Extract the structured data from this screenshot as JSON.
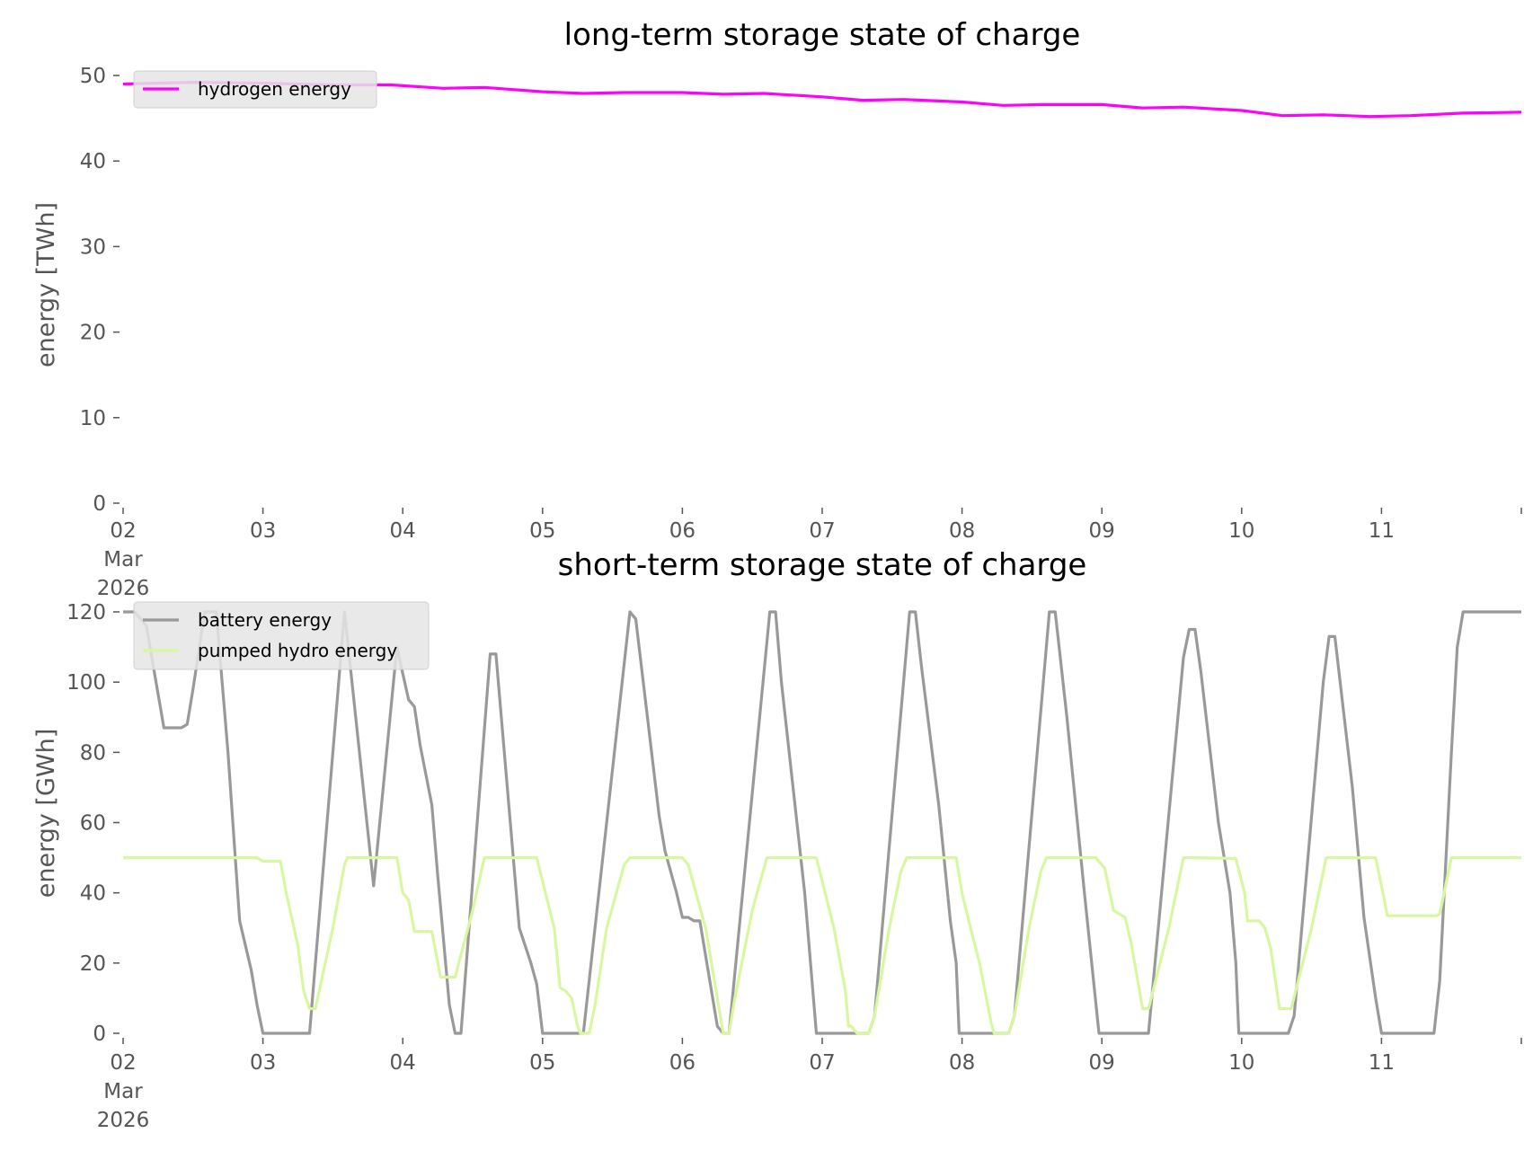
{
  "chart_data": [
    {
      "type": "line",
      "title": "long-term storage state of charge",
      "xlabel": "",
      "ylabel": "energy [TWh]",
      "xlim": [
        "2026-03-02T00:00",
        "2026-03-12T00:00"
      ],
      "ylim": [
        0,
        50
      ],
      "yticks": [
        "0",
        "10",
        "20",
        "30",
        "40",
        "50"
      ],
      "xticks": [
        "02\nMar\n2026",
        "03",
        "04",
        "05",
        "06",
        "07",
        "08",
        "09",
        "10",
        "11"
      ],
      "grid": false,
      "legend_placement": "upper-left",
      "series": [
        {
          "name": "hydrogen energy",
          "color": "#ff00ff",
          "points": [
            [
              "2026-03-02T00:00",
              49.0
            ],
            [
              "2026-03-02T12:00",
              49.2
            ],
            [
              "2026-03-03T00:00",
              49.1
            ],
            [
              "2026-03-03T12:00",
              48.9
            ],
            [
              "2026-03-03T22:00",
              48.9
            ],
            [
              "2026-03-04T07:00",
              48.5
            ],
            [
              "2026-03-04T14:00",
              48.6
            ],
            [
              "2026-03-05T00:00",
              48.1
            ],
            [
              "2026-03-05T07:00",
              47.9
            ],
            [
              "2026-03-05T14:00",
              48.0
            ],
            [
              "2026-03-06T00:00",
              48.0
            ],
            [
              "2026-03-06T07:00",
              47.8
            ],
            [
              "2026-03-06T14:00",
              47.9
            ],
            [
              "2026-03-07T00:00",
              47.5
            ],
            [
              "2026-03-07T07:00",
              47.1
            ],
            [
              "2026-03-07T14:00",
              47.2
            ],
            [
              "2026-03-08T00:00",
              46.9
            ],
            [
              "2026-03-08T07:00",
              46.5
            ],
            [
              "2026-03-08T14:00",
              46.6
            ],
            [
              "2026-03-09T00:00",
              46.6
            ],
            [
              "2026-03-09T07:00",
              46.2
            ],
            [
              "2026-03-09T14:00",
              46.3
            ],
            [
              "2026-03-10T00:00",
              45.9
            ],
            [
              "2026-03-10T07:00",
              45.3
            ],
            [
              "2026-03-10T14:00",
              45.4
            ],
            [
              "2026-03-10T22:00",
              45.2
            ],
            [
              "2026-03-11T05:00",
              45.3
            ],
            [
              "2026-03-11T14:00",
              45.6
            ],
            [
              "2026-03-12T00:00",
              45.7
            ]
          ]
        }
      ]
    },
    {
      "type": "line",
      "title": "short-term storage state of charge",
      "xlabel": "",
      "ylabel": "energy [GWh]",
      "xlim": [
        "2026-03-02T00:00",
        "2026-03-12T00:00"
      ],
      "ylim": [
        0,
        120
      ],
      "yticks": [
        "0",
        "20",
        "40",
        "60",
        "80",
        "100",
        "120"
      ],
      "xticks": [
        "02\nMar\n2026",
        "03",
        "04",
        "05",
        "06",
        "07",
        "08",
        "09",
        "10",
        "11"
      ],
      "grid": false,
      "legend_placement": "upper-left",
      "series": [
        {
          "name": "battery energy",
          "color": "#999999",
          "points": [
            [
              "2026-03-02T00:00",
              120
            ],
            [
              "2026-03-02T02:00",
              120
            ],
            [
              "2026-03-02T04:00",
              116
            ],
            [
              "2026-03-02T07:00",
              87
            ],
            [
              "2026-03-02T10:00",
              87
            ],
            [
              "2026-03-02T11:00",
              88
            ],
            [
              "2026-03-02T12:00",
              98
            ],
            [
              "2026-03-02T14:00",
              120
            ],
            [
              "2026-03-02T16:00",
              120
            ],
            [
              "2026-03-02T18:00",
              80
            ],
            [
              "2026-03-02T20:00",
              32
            ],
            [
              "2026-03-02T22:00",
              18
            ],
            [
              "2026-03-02T23:00",
              8
            ],
            [
              "2026-03-03T00:00",
              0
            ],
            [
              "2026-03-03T08:00",
              0
            ],
            [
              "2026-03-03T14:00",
              120
            ],
            [
              "2026-03-03T19:00",
              42
            ],
            [
              "2026-03-03T23:00",
              110
            ],
            [
              "2026-03-04T01:00",
              95
            ],
            [
              "2026-03-04T02:00",
              93
            ],
            [
              "2026-03-04T03:00",
              82
            ],
            [
              "2026-03-04T05:00",
              65
            ],
            [
              "2026-03-04T06:00",
              45
            ],
            [
              "2026-03-04T08:00",
              8
            ],
            [
              "2026-03-04T09:00",
              0
            ],
            [
              "2026-03-04T10:00",
              0
            ],
            [
              "2026-03-04T15:00",
              108
            ],
            [
              "2026-03-04T16:00",
              108
            ],
            [
              "2026-03-04T20:00",
              30
            ],
            [
              "2026-03-04T22:00",
              20
            ],
            [
              "2026-03-04T23:00",
              14
            ],
            [
              "2026-03-05T00:00",
              0
            ],
            [
              "2026-03-05T07:00",
              0
            ],
            [
              "2026-03-05T15:00",
              120
            ],
            [
              "2026-03-05T16:00",
              118
            ],
            [
              "2026-03-05T20:00",
              62
            ],
            [
              "2026-03-05T21:00",
              52
            ],
            [
              "2026-03-05T23:00",
              40
            ],
            [
              "2026-03-06T00:00",
              33
            ],
            [
              "2026-03-06T01:00",
              33
            ],
            [
              "2026-03-06T02:00",
              32
            ],
            [
              "2026-03-06T03:00",
              32
            ],
            [
              "2026-03-06T06:00",
              2
            ],
            [
              "2026-03-06T07:00",
              0
            ],
            [
              "2026-03-06T08:00",
              0
            ],
            [
              "2026-03-06T15:00",
              120
            ],
            [
              "2026-03-06T16:00",
              120
            ],
            [
              "2026-03-06T17:00",
              100
            ],
            [
              "2026-03-06T21:00",
              40
            ],
            [
              "2026-03-06T23:00",
              0
            ],
            [
              "2026-03-07T08:00",
              0
            ],
            [
              "2026-03-07T09:00",
              5
            ],
            [
              "2026-03-07T15:00",
              120
            ],
            [
              "2026-03-07T16:00",
              120
            ],
            [
              "2026-03-07T17:00",
              105
            ],
            [
              "2026-03-07T20:00",
              65
            ],
            [
              "2026-03-07T22:00",
              32
            ],
            [
              "2026-03-07T23:00",
              20
            ],
            [
              "2026-03-07T23:30",
              0
            ],
            [
              "2026-03-08T08:00",
              0
            ],
            [
              "2026-03-08T09:00",
              5
            ],
            [
              "2026-03-08T15:00",
              120
            ],
            [
              "2026-03-08T16:00",
              120
            ],
            [
              "2026-03-08T18:00",
              90
            ],
            [
              "2026-03-08T21:00",
              40
            ],
            [
              "2026-03-08T23:30",
              0
            ],
            [
              "2026-03-09T08:00",
              0
            ],
            [
              "2026-03-09T14:00",
              107
            ],
            [
              "2026-03-09T15:00",
              115
            ],
            [
              "2026-03-09T16:00",
              115
            ],
            [
              "2026-03-09T17:00",
              103
            ],
            [
              "2026-03-09T20:00",
              60
            ],
            [
              "2026-03-09T22:00",
              40
            ],
            [
              "2026-03-09T23:00",
              20
            ],
            [
              "2026-03-09T23:30",
              0
            ],
            [
              "2026-03-10T08:00",
              0
            ],
            [
              "2026-03-10T09:00",
              5
            ],
            [
              "2026-03-10T14:00",
              100
            ],
            [
              "2026-03-10T15:00",
              113
            ],
            [
              "2026-03-10T16:00",
              113
            ],
            [
              "2026-03-10T19:00",
              70
            ],
            [
              "2026-03-10T21:00",
              33
            ],
            [
              "2026-03-10T23:00",
              10
            ],
            [
              "2026-03-11T00:00",
              0
            ],
            [
              "2026-03-11T09:00",
              0
            ],
            [
              "2026-03-11T10:00",
              15
            ],
            [
              "2026-03-11T12:00",
              80
            ],
            [
              "2026-03-11T13:00",
              110
            ],
            [
              "2026-03-11T14:00",
              120
            ],
            [
              "2026-03-12T00:00",
              120
            ]
          ]
        },
        {
          "name": "pumped hydro energy",
          "color": "#d9f7a0",
          "points": [
            [
              "2026-03-02T00:00",
              50
            ],
            [
              "2026-03-02T23:00",
              50
            ],
            [
              "2026-03-03T00:00",
              49
            ],
            [
              "2026-03-03T03:00",
              49
            ],
            [
              "2026-03-03T04:00",
              40
            ],
            [
              "2026-03-03T06:00",
              25
            ],
            [
              "2026-03-03T07:00",
              12
            ],
            [
              "2026-03-03T08:00",
              7
            ],
            [
              "2026-03-03T09:00",
              7
            ],
            [
              "2026-03-03T12:00",
              30
            ],
            [
              "2026-03-03T14:00",
              48
            ],
            [
              "2026-03-03T14:30",
              50
            ],
            [
              "2026-03-03T23:00",
              50
            ],
            [
              "2026-03-04T00:00",
              40
            ],
            [
              "2026-03-04T01:00",
              38
            ],
            [
              "2026-03-04T02:00",
              29
            ],
            [
              "2026-03-04T05:00",
              29
            ],
            [
              "2026-03-04T06:30",
              16
            ],
            [
              "2026-03-04T09:00",
              16
            ],
            [
              "2026-03-04T12:00",
              35
            ],
            [
              "2026-03-04T14:00",
              50
            ],
            [
              "2026-03-04T23:00",
              50
            ],
            [
              "2026-03-05T02:00",
              30
            ],
            [
              "2026-03-05T03:00",
              13
            ],
            [
              "2026-03-05T04:00",
              12
            ],
            [
              "2026-03-05T05:00",
              10
            ],
            [
              "2026-03-05T06:00",
              2
            ],
            [
              "2026-03-05T06:30",
              0
            ],
            [
              "2026-03-05T08:00",
              0
            ],
            [
              "2026-03-05T09:00",
              8
            ],
            [
              "2026-03-05T11:00",
              30
            ],
            [
              "2026-03-05T14:00",
              48
            ],
            [
              "2026-03-05T15:00",
              50
            ],
            [
              "2026-03-06T00:00",
              50
            ],
            [
              "2026-03-06T01:00",
              48
            ],
            [
              "2026-03-06T04:00",
              30
            ],
            [
              "2026-03-06T06:00",
              10
            ],
            [
              "2026-03-06T07:00",
              0
            ],
            [
              "2026-03-06T08:00",
              0
            ],
            [
              "2026-03-06T09:00",
              10
            ],
            [
              "2026-03-06T12:00",
              35
            ],
            [
              "2026-03-06T14:30",
              50
            ],
            [
              "2026-03-06T23:00",
              50
            ],
            [
              "2026-03-07T02:00",
              30
            ],
            [
              "2026-03-07T04:00",
              12
            ],
            [
              "2026-03-07T04:30",
              2
            ],
            [
              "2026-03-07T05:00",
              2
            ],
            [
              "2026-03-07T06:00",
              0
            ],
            [
              "2026-03-07T08:00",
              0
            ],
            [
              "2026-03-07T09:00",
              5
            ],
            [
              "2026-03-07T11:30",
              30
            ],
            [
              "2026-03-07T13:30",
              46
            ],
            [
              "2026-03-07T14:30",
              50
            ],
            [
              "2026-03-07T23:00",
              50
            ],
            [
              "2026-03-08T00:00",
              40
            ],
            [
              "2026-03-08T01:00",
              33
            ],
            [
              "2026-03-08T03:00",
              20
            ],
            [
              "2026-03-08T05:00",
              3
            ],
            [
              "2026-03-08T05:30",
              0
            ],
            [
              "2026-03-08T08:00",
              0
            ],
            [
              "2026-03-08T09:00",
              5
            ],
            [
              "2026-03-08T11:30",
              30
            ],
            [
              "2026-03-08T13:30",
              46
            ],
            [
              "2026-03-08T14:30",
              50
            ],
            [
              "2026-03-08T23:00",
              50
            ],
            [
              "2026-03-09T00:30",
              47
            ],
            [
              "2026-03-09T01:00",
              43
            ],
            [
              "2026-03-09T02:00",
              35
            ],
            [
              "2026-03-09T04:00",
              33
            ],
            [
              "2026-03-09T05:00",
              26
            ],
            [
              "2026-03-09T07:00",
              7
            ],
            [
              "2026-03-09T08:00",
              7
            ],
            [
              "2026-03-09T11:30",
              30
            ],
            [
              "2026-03-09T14:00",
              50
            ],
            [
              "2026-03-09T15:30",
              50
            ],
            [
              "2026-03-09T23:00",
              49.8
            ],
            [
              "2026-03-10T00:30",
              40
            ],
            [
              "2026-03-10T01:00",
              32
            ],
            [
              "2026-03-10T03:00",
              32
            ],
            [
              "2026-03-10T04:00",
              30
            ],
            [
              "2026-03-10T05:00",
              24
            ],
            [
              "2026-03-10T06:30",
              7
            ],
            [
              "2026-03-10T08:30",
              7
            ],
            [
              "2026-03-10T12:00",
              30
            ],
            [
              "2026-03-10T14:30",
              50
            ],
            [
              "2026-03-10T23:00",
              50
            ],
            [
              "2026-03-11T00:15",
              40
            ],
            [
              "2026-03-11T01:00",
              33.5
            ],
            [
              "2026-03-11T09:30",
              33.5
            ],
            [
              "2026-03-11T10:00",
              34
            ],
            [
              "2026-03-11T12:00",
              50
            ],
            [
              "2026-03-12T00:00",
              50
            ]
          ]
        }
      ]
    }
  ]
}
